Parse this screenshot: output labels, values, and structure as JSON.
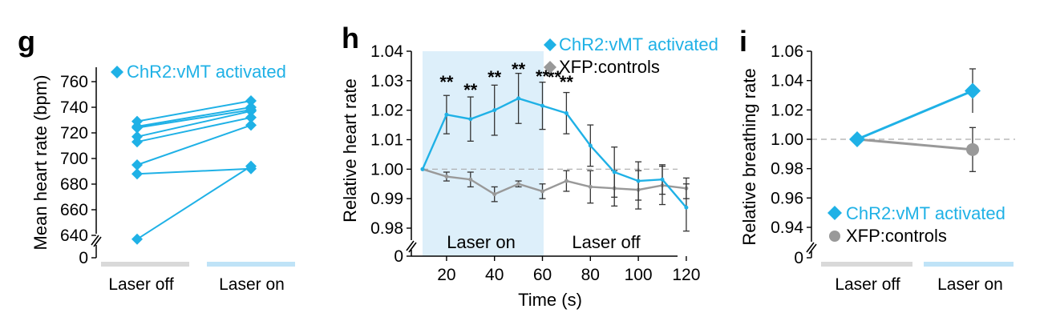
{
  "colors": {
    "chr2": "#1fb1e6",
    "xfp": "#999999",
    "laser_on_bg": "#ddeffa",
    "laser_off_bar": "#d9d9d9",
    "laser_on_bar": "#bfe3f7"
  },
  "panels": {
    "g": "g",
    "h": "h",
    "i": "i"
  },
  "chart_data": [
    {
      "panel": "g",
      "type": "line",
      "ylabel": "Mean heart rate (bpm)",
      "categories": [
        "Laser off",
        "Laser on"
      ],
      "yticks": [
        "0",
        "640",
        "660",
        "680",
        "700",
        "720",
        "740",
        "760"
      ],
      "legend": [
        "ChR2:vMT activated"
      ],
      "series": [
        {
          "name": "ChR2:vMT activated",
          "pairs": [
            [
              729,
              745
            ],
            [
              725,
              740
            ],
            [
              724,
              738
            ],
            [
              717,
              737
            ],
            [
              713,
              732
            ],
            [
              695,
              726
            ],
            [
              688,
              692
            ],
            [
              637,
              694
            ]
          ]
        }
      ]
    },
    {
      "panel": "h",
      "type": "line",
      "xlabel": "Time (s)",
      "ylabel": "Relative heart rate",
      "xticks": [
        "20",
        "40",
        "60",
        "80",
        "100",
        "120"
      ],
      "yticks": [
        "0",
        "0.98",
        "0.99",
        "1.00",
        "1.01",
        "1.02",
        "1.03",
        "1.04"
      ],
      "shaded_label": "Laser on",
      "unshaded_label": "Laser off",
      "significance": [
        "**",
        "**",
        "**",
        "**",
        "**",
        "**",
        "**"
      ],
      "legend": [
        "ChR2:vMT activated",
        "XFP:controls"
      ],
      "x": [
        10,
        20,
        30,
        40,
        50,
        60,
        70,
        80,
        90,
        100,
        110,
        120
      ],
      "series": [
        {
          "name": "ChR2:vMT activated",
          "values": [
            1.0,
            1.0185,
            1.017,
            1.02,
            1.024,
            1.0215,
            1.019,
            1.008,
            0.999,
            0.996,
            0.9965,
            0.987
          ],
          "err": [
            0,
            0.0065,
            0.0075,
            0.0085,
            0.0085,
            0.008,
            0.007,
            0.007,
            0.0085,
            0.0065,
            0.005,
            0.008
          ]
        },
        {
          "name": "XFP:controls",
          "values": [
            1.0,
            0.9975,
            0.9965,
            0.9915,
            0.995,
            0.9925,
            0.996,
            0.994,
            0.9935,
            0.993,
            0.9945,
            0.9935
          ],
          "err": [
            0,
            0.0015,
            0.0025,
            0.0025,
            0.001,
            0.0025,
            0.0035,
            0.0055,
            0.006,
            0.0065,
            0.0065,
            0.0035
          ]
        }
      ]
    },
    {
      "panel": "i",
      "type": "line",
      "ylabel": "Relative breathing rate",
      "categories": [
        "Laser off",
        "Laser on"
      ],
      "yticks": [
        "0",
        "0.94",
        "0.96",
        "0.98",
        "1.00",
        "1.02",
        "1.04",
        "1.06"
      ],
      "legend": [
        "ChR2:vMT activated",
        "XFP:controls"
      ],
      "series": [
        {
          "name": "ChR2:vMT activated",
          "values": [
            1.0,
            1.033
          ],
          "err": [
            0,
            0.015
          ]
        },
        {
          "name": "XFP:controls",
          "values": [
            1.0,
            0.993
          ],
          "err": [
            0,
            0.015
          ]
        }
      ]
    }
  ]
}
